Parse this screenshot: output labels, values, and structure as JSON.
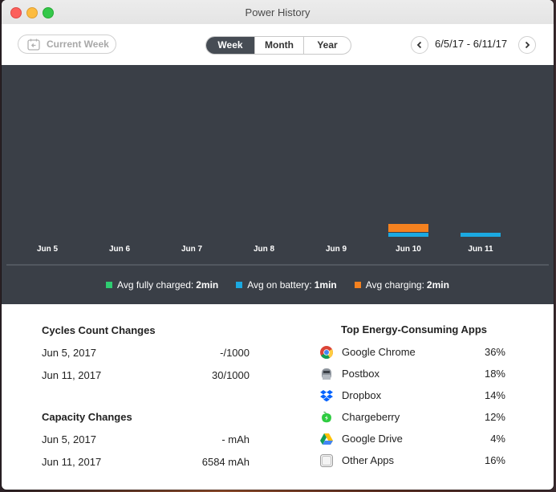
{
  "window": {
    "title": "Power History"
  },
  "toolbar": {
    "current_week_label": "Current Week",
    "tabs": [
      {
        "label": "Week",
        "active": true
      },
      {
        "label": "Month",
        "active": false
      },
      {
        "label": "Year",
        "active": false
      }
    ],
    "date_range": "6/5/17 - 6/11/17",
    "prev_icon": "chevron-left-icon",
    "next_icon": "chevron-right-icon"
  },
  "colors": {
    "fully_charged": "#2ecc71",
    "on_battery": "#1ba9e1",
    "charging": "#f4811f",
    "panel": "#3a3f47"
  },
  "chart_data": {
    "type": "bar",
    "categories": [
      "Jun 5",
      "Jun 6",
      "Jun 7",
      "Jun 8",
      "Jun 9",
      "Jun 10",
      "Jun 11"
    ],
    "series": [
      {
        "name": "Avg on battery",
        "values": [
          0,
          0,
          0,
          0,
          0,
          1,
          1
        ]
      },
      {
        "name": "Avg charging",
        "values": [
          0,
          0,
          0,
          0,
          0,
          2,
          0
        ]
      }
    ],
    "max_value": 40
  },
  "legend": [
    {
      "label": "Avg fully charged:",
      "value": "2min",
      "color": "#2ecc71"
    },
    {
      "label": "Avg on battery:",
      "value": "1min",
      "color": "#1ba9e1"
    },
    {
      "label": "Avg charging:",
      "value": "2min",
      "color": "#f4811f"
    }
  ],
  "cycles": {
    "title": "Cycles Count Changes",
    "rows": [
      {
        "date": "Jun 5, 2017",
        "value": "-/1000"
      },
      {
        "date": "Jun 11, 2017",
        "value": "30/1000"
      }
    ]
  },
  "capacity": {
    "title": "Capacity Changes",
    "rows": [
      {
        "date": "Jun 5, 2017",
        "value": "- mAh"
      },
      {
        "date": "Jun 11, 2017",
        "value": "6584 mAh"
      }
    ]
  },
  "apps": {
    "title": "Top Energy-Consuming Apps",
    "items": [
      {
        "name": "Google Chrome",
        "percent": "36%",
        "icon": "chrome-icon"
      },
      {
        "name": "Postbox",
        "percent": "18%",
        "icon": "postbox-icon"
      },
      {
        "name": "Dropbox",
        "percent": "14%",
        "icon": "dropbox-icon"
      },
      {
        "name": "Chargeberry",
        "percent": "12%",
        "icon": "chargeberry-icon"
      },
      {
        "name": "Google Drive",
        "percent": "4%",
        "icon": "google-drive-icon"
      },
      {
        "name": "Other Apps",
        "percent": "16%",
        "icon": "other-apps-icon"
      }
    ]
  }
}
